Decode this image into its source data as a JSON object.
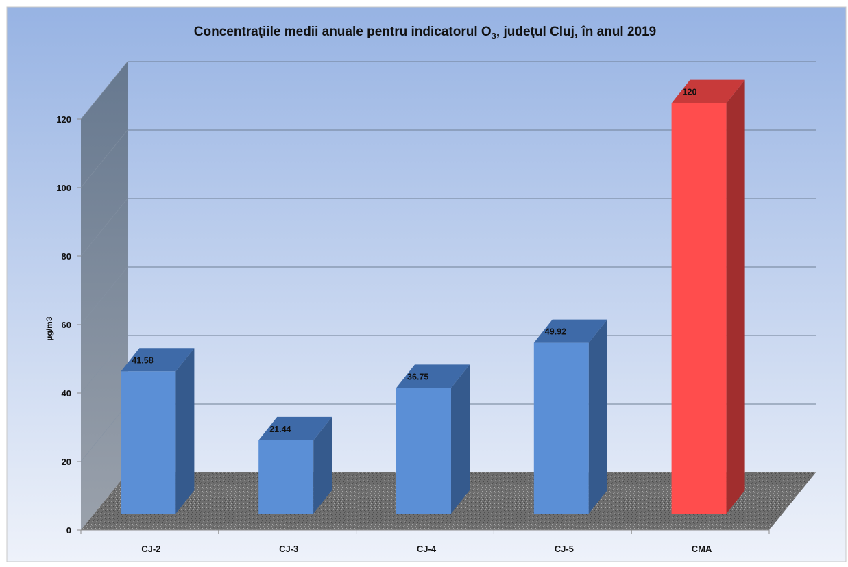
{
  "chart_data": {
    "type": "bar",
    "title": "Concentraţiile medii anuale pentru indicatorul O",
    "title_sub": "3",
    "title_tail": ", judeţul Cluj, în anul 2019",
    "xlabel": "",
    "ylabel": "µg/m3",
    "categories": [
      "CJ-2",
      "CJ-3",
      "CJ-4",
      "CJ-5",
      "CMA"
    ],
    "values": [
      41.58,
      21.44,
      36.75,
      49.92,
      120
    ],
    "value_labels": [
      "41.58",
      "21.44",
      "36.75",
      "49.92",
      "120"
    ],
    "ylim": [
      0,
      120
    ],
    "yticks": [
      0,
      20,
      40,
      60,
      80,
      100,
      120
    ],
    "ytick_labels": [
      "0",
      "20",
      "40",
      "60",
      "80",
      "100",
      "120"
    ],
    "grid": true,
    "legend": "none",
    "colors": {
      "bar": "#5B8FD6",
      "bar_side": "#355A8D",
      "bar_top": "#3E6AA8",
      "limit_bar": "#FF4D4D",
      "limit_side": "#A12E2E",
      "limit_top": "#C83A3A",
      "background_top": "#97B3E3",
      "background_bottom": "#EEF2FA",
      "floor": "#6E6E6E",
      "side_wall": "#7A8594"
    }
  }
}
